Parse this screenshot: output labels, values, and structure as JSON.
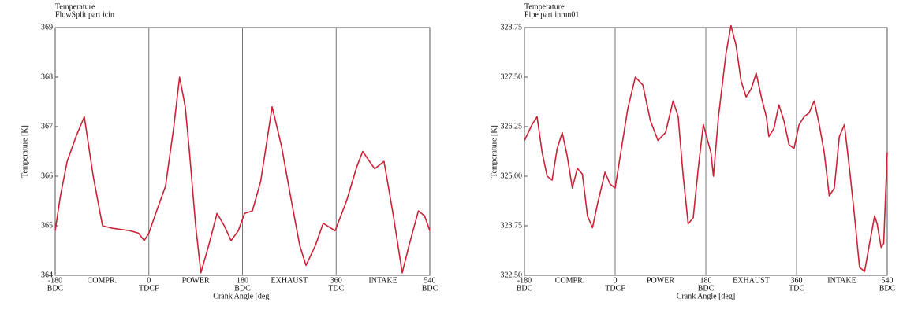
{
  "chart_data": [
    {
      "type": "line",
      "title": "Temperature",
      "subtitle": "FlowSplit part icin",
      "xlabel": "Crank Angle [deg]",
      "ylabel": "Temperature [K]",
      "xlim": [
        -180,
        540
      ],
      "xticks": [
        -180,
        0,
        180,
        360,
        540
      ],
      "xtick_sublabels": [
        "BDC",
        "TDCF",
        "BDC",
        "TDC",
        "BDC"
      ],
      "annotations": [
        "COMPR.",
        "POWER",
        "EXHAUST",
        "INTAKE"
      ],
      "ylim": [
        364,
        369
      ],
      "yticks": [
        364,
        365,
        366,
        367,
        368,
        369
      ],
      "xgrid": true,
      "color": "#cc2236",
      "x": [
        -180,
        -170,
        -157,
        -140,
        -124,
        -107,
        -89,
        -70,
        -50,
        -36,
        -20,
        -9,
        0,
        15,
        32,
        48,
        59,
        70,
        78,
        90,
        100,
        115,
        131,
        145,
        158,
        172,
        184,
        199,
        215,
        237,
        255,
        274,
        290,
        302,
        320,
        335,
        358,
        380,
        400,
        411,
        424,
        434,
        452,
        470,
        487,
        500,
        518,
        530,
        540
      ],
      "values": [
        364.9,
        365.6,
        366.3,
        366.8,
        367.2,
        366.0,
        365.0,
        364.95,
        364.92,
        364.9,
        364.85,
        364.7,
        364.85,
        365.3,
        365.8,
        367.0,
        368.0,
        367.4,
        366.5,
        365.0,
        364.05,
        364.6,
        365.25,
        365.0,
        364.7,
        364.9,
        365.25,
        365.3,
        365.9,
        367.4,
        366.6,
        365.5,
        364.6,
        364.2,
        364.6,
        365.05,
        364.9,
        365.5,
        366.2,
        366.5,
        366.3,
        366.15,
        366.3,
        365.2,
        364.05,
        364.6,
        365.3,
        365.2,
        364.9
      ]
    },
    {
      "type": "line",
      "title": "Temperature",
      "subtitle": "Pipe part inrun01",
      "xlabel": "Crank Angle [deg]",
      "ylabel": "Temperature [K]",
      "xlim": [
        -180,
        540
      ],
      "xticks": [
        -180,
        0,
        180,
        360,
        540
      ],
      "xtick_sublabels": [
        "BDC",
        "TDCF",
        "BDC",
        "TDC",
        "BDC"
      ],
      "annotations": [
        "COMPR.",
        "POWER",
        "EXHAUST",
        "INTAKE"
      ],
      "ylim": [
        322.5,
        328.75
      ],
      "yticks": [
        {
          "value": 322.5,
          "label": "322.50"
        },
        {
          "value": 323.75,
          "label": "323.75"
        },
        {
          "value": 325,
          "label": "325.00"
        },
        {
          "value": 326.25,
          "label": "326.25"
        },
        {
          "value": 327.5,
          "label": "327.50"
        },
        {
          "value": 328.75,
          "label": "328.75"
        }
      ],
      "xgrid": true,
      "color": "#cc2236",
      "x": [
        -180,
        -165,
        -155,
        -145,
        -135,
        -125,
        -115,
        -105,
        -95,
        -85,
        -75,
        -65,
        -55,
        -45,
        -35,
        -20,
        -10,
        0,
        10,
        25,
        40,
        55,
        70,
        85,
        100,
        115,
        125,
        135,
        145,
        155,
        165,
        175,
        190,
        195,
        205,
        220,
        230,
        240,
        250,
        260,
        270,
        280,
        290,
        300,
        305,
        315,
        325,
        335,
        345,
        355,
        365,
        375,
        385,
        395,
        405,
        415,
        425,
        435,
        445,
        455,
        465,
        475,
        485,
        495,
        505,
        515,
        520,
        528,
        533,
        540
      ],
      "values": [
        325.9,
        326.3,
        326.5,
        325.6,
        325.0,
        324.9,
        325.7,
        326.1,
        325.5,
        324.7,
        325.2,
        325.05,
        324.0,
        323.7,
        324.3,
        325.1,
        324.8,
        324.7,
        325.5,
        326.7,
        327.5,
        327.3,
        326.4,
        325.9,
        326.1,
        326.9,
        326.5,
        325.0,
        323.8,
        323.95,
        325.2,
        326.3,
        325.6,
        325.0,
        326.5,
        328.1,
        328.8,
        328.3,
        327.4,
        327.0,
        327.2,
        327.6,
        327.0,
        326.5,
        326.0,
        326.2,
        326.8,
        326.4,
        325.8,
        325.7,
        326.3,
        326.5,
        326.6,
        326.9,
        326.3,
        325.6,
        324.5,
        324.7,
        326.0,
        326.3,
        325.2,
        324.0,
        322.7,
        322.6,
        323.3,
        324.0,
        323.8,
        323.2,
        323.3,
        325.6
      ]
    }
  ]
}
